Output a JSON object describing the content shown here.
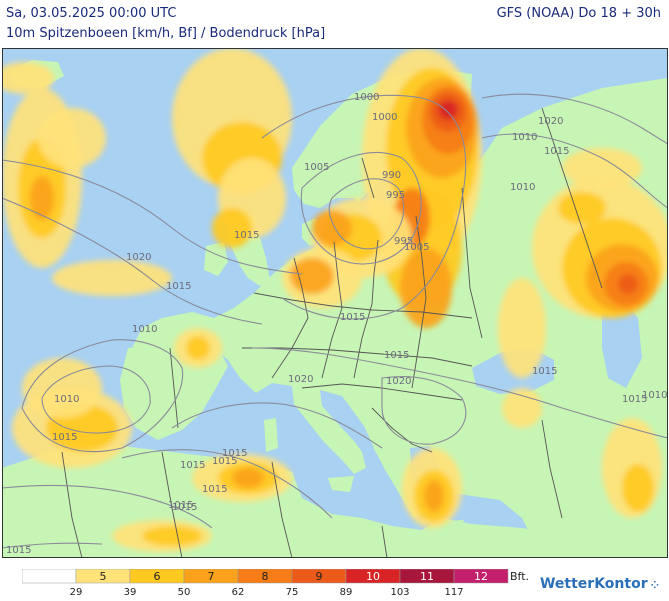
{
  "header": {
    "datetime": "Sa, 03.05.2025 00:00 UTC",
    "subtitle": "10m Spitzenboeen [km/h, Bf] / Bodendruck [hPa]",
    "model": "GFS (NOAA) Do 18 + 30h"
  },
  "map": {
    "region": "Europe",
    "colors": {
      "sea": "#a9d1f2",
      "land": "#c7f5b5",
      "border": "#555555",
      "isobar": "#8a8a9a"
    },
    "isobars": [
      {
        "label": "1015"
      },
      {
        "label": "1020"
      },
      {
        "label": "1015"
      },
      {
        "label": "1010"
      },
      {
        "label": "1010"
      },
      {
        "label": "1015"
      },
      {
        "label": "1015"
      },
      {
        "label": "1015"
      },
      {
        "label": "1015"
      },
      {
        "label": "1015"
      },
      {
        "label": "1015"
      },
      {
        "label": "1020"
      },
      {
        "label": "1015"
      },
      {
        "label": "1020"
      },
      {
        "label": "1015"
      },
      {
        "label": "1010"
      },
      {
        "label": "1005"
      },
      {
        "label": "990"
      },
      {
        "label": "995"
      },
      {
        "label": "1000"
      },
      {
        "label": "1005"
      },
      {
        "label": "1000"
      },
      {
        "label": "995"
      },
      {
        "label": "1010"
      },
      {
        "label": "1015"
      },
      {
        "label": "1020"
      },
      {
        "label": "1015"
      },
      {
        "label": "1010"
      },
      {
        "label": "1015"
      },
      {
        "label": "1015"
      },
      {
        "label": "1015"
      }
    ]
  },
  "legend": {
    "bft_unit": "Bft.",
    "bins": [
      {
        "bft": "",
        "color": "#ffffff"
      },
      {
        "bft": "5",
        "color": "#ffe27a"
      },
      {
        "bft": "6",
        "color": "#ffc91f"
      },
      {
        "bft": "7",
        "color": "#fba21a"
      },
      {
        "bft": "8",
        "color": "#f57c16"
      },
      {
        "bft": "9",
        "color": "#ec5a1a"
      },
      {
        "bft": "10",
        "color": "#d82424"
      },
      {
        "bft": "11",
        "color": "#a8163c"
      },
      {
        "bft": "12",
        "color": "#c2206a"
      }
    ],
    "kmh_ticks": [
      "29",
      "39",
      "50",
      "62",
      "75",
      "89",
      "103",
      "117"
    ]
  },
  "brand": {
    "name": "WetterKontor"
  }
}
